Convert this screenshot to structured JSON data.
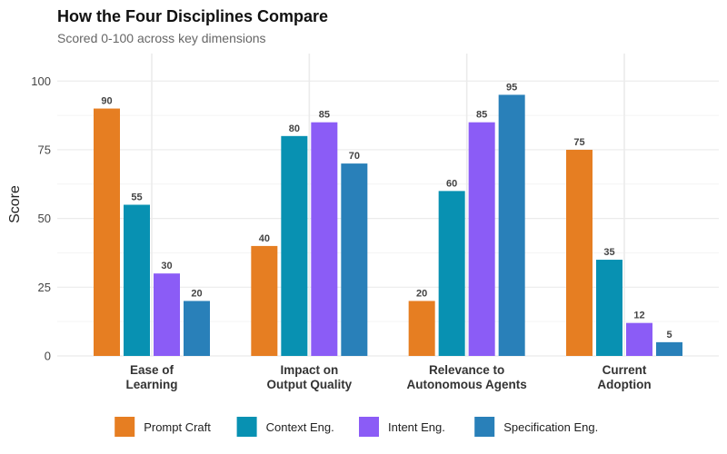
{
  "chart_data": {
    "type": "bar",
    "title": "How the Four Disciplines Compare",
    "subtitle": "Scored 0-100 across key dimensions",
    "xlabel": "",
    "ylabel": "Score",
    "ylim": [
      0,
      110
    ],
    "yticks": [
      0,
      25,
      50,
      75,
      100
    ],
    "grid": true,
    "legend_position": "bottom",
    "categories": [
      [
        "Ease of",
        "Learning"
      ],
      [
        "Impact on",
        "Output Quality"
      ],
      [
        "Relevance to",
        "Autonomous Agents"
      ],
      [
        "Current",
        "Adoption"
      ]
    ],
    "series": [
      {
        "name": "Prompt Craft",
        "color": "#E67E22",
        "values": [
          90,
          40,
          20,
          75
        ]
      },
      {
        "name": "Context Eng.",
        "color": "#0891B2",
        "values": [
          55,
          80,
          60,
          35
        ]
      },
      {
        "name": "Intent Eng.",
        "color": "#8B5CF6",
        "values": [
          30,
          85,
          85,
          12
        ]
      },
      {
        "name": "Specification Eng.",
        "color": "#2980B9",
        "values": [
          20,
          70,
          95,
          5
        ]
      }
    ]
  }
}
